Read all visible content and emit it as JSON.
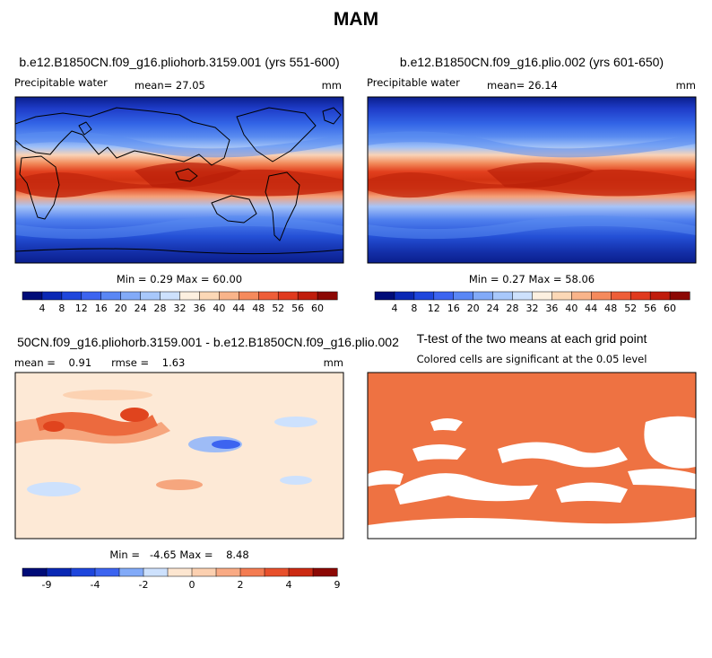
{
  "page": {
    "season": "MAM"
  },
  "panels": [
    {
      "id": "p1",
      "title": "b.e12.B1850CN.f09_g16.pliohorb.3159.001 (yrs 551-600)",
      "field_label": "Precipitable water",
      "stat_left": "mean=  27.05",
      "units": "mm",
      "minmax": "Min =    0.29 Max =   60.00",
      "kind": "absolute"
    },
    {
      "id": "p2",
      "title": "b.e12.B1850CN.f09_g16.plio.002 (yrs 601-650)",
      "field_label": "Precipitable water",
      "stat_left": "mean=  26.14",
      "units": "mm",
      "minmax": "Min =    0.27 Max =   58.06",
      "kind": "absolute"
    },
    {
      "id": "p3",
      "title": "50CN.f09_g16.pliohorb.3159.001 - b.e12.B1850CN.f09_g16.plio.002",
      "field_label": "mean =    0.91      rmse =    1.63",
      "units": "mm",
      "minmax": "Min =   -4.65 Max =    8.48",
      "kind": "difference"
    },
    {
      "id": "p4",
      "title": "T-test of the two means at each grid point",
      "field_label": "Colored cells are significant at the 0.05 level",
      "kind": "significance"
    }
  ],
  "chart_data": [
    {
      "type": "heatmap",
      "title": "b.e12.B1850CN.f09_g16.pliohorb.3159.001 (yrs 551-600)",
      "variable": "Precipitable water",
      "units": "mm",
      "mean": 27.05,
      "min": 0.29,
      "max": 60.0,
      "colorbar_levels": [
        4,
        8,
        12,
        16,
        20,
        24,
        28,
        32,
        36,
        40,
        44,
        48,
        52,
        56,
        60
      ],
      "colorbar_labels": [
        "4",
        "8",
        "12",
        "16",
        "20",
        "24",
        "28",
        "32",
        "36",
        "40",
        "44",
        "48",
        "52",
        "56",
        "60"
      ]
    },
    {
      "type": "heatmap",
      "title": "b.e12.B1850CN.f09_g16.plio.002 (yrs 601-650)",
      "variable": "Precipitable water",
      "units": "mm",
      "mean": 26.14,
      "min": 0.27,
      "max": 58.06,
      "colorbar_levels": [
        4,
        8,
        12,
        16,
        20,
        24,
        28,
        32,
        36,
        40,
        44,
        48,
        52,
        56,
        60
      ],
      "colorbar_labels": [
        "4",
        "8",
        "12",
        "16",
        "20",
        "24",
        "28",
        "32",
        "36",
        "40",
        "44",
        "48",
        "52",
        "56",
        "60"
      ]
    },
    {
      "type": "heatmap",
      "title": "50CN.f09_g16.pliohorb.3159.001 - b.e12.B1850CN.f09_g16.plio.002",
      "units": "mm",
      "mean": 0.91,
      "rmse": 1.63,
      "min": -4.65,
      "max": 8.48,
      "colorbar_levels": [
        -9,
        -6,
        -4,
        -3,
        -2,
        -1,
        0,
        1,
        2,
        3,
        4,
        6,
        9
      ],
      "colorbar_labels": [
        "-9",
        "",
        "-4",
        "",
        "-2",
        "",
        "0",
        "",
        "2",
        "",
        "4",
        "",
        "9"
      ]
    },
    {
      "type": "heatmap",
      "title": "T-test of the two means at each grid point",
      "note": "Colored cells are significant at the 0.05 level",
      "significance_level": 0.05
    }
  ],
  "colors": {
    "abs": [
      "#000c78",
      "#0a28b4",
      "#1e46dc",
      "#3c64f0",
      "#5a87f5",
      "#82aaf8",
      "#a8c8fb",
      "#cde1fd",
      "#fdf0e0",
      "#fcd8b6",
      "#f9b48a",
      "#f58a5c",
      "#ee5e38",
      "#e03a1e",
      "#c01d0c",
      "#8c0804"
    ],
    "diff": [
      "#000c78",
      "#0a28b4",
      "#1e46dc",
      "#3c64f0",
      "#82aaf8",
      "#cde1fd",
      "#fde6d0",
      "#fcd0b0",
      "#f9aa84",
      "#f47c52",
      "#e8502c",
      "#cc2a12",
      "#8c0804"
    ],
    "sig": "#ee7242"
  }
}
